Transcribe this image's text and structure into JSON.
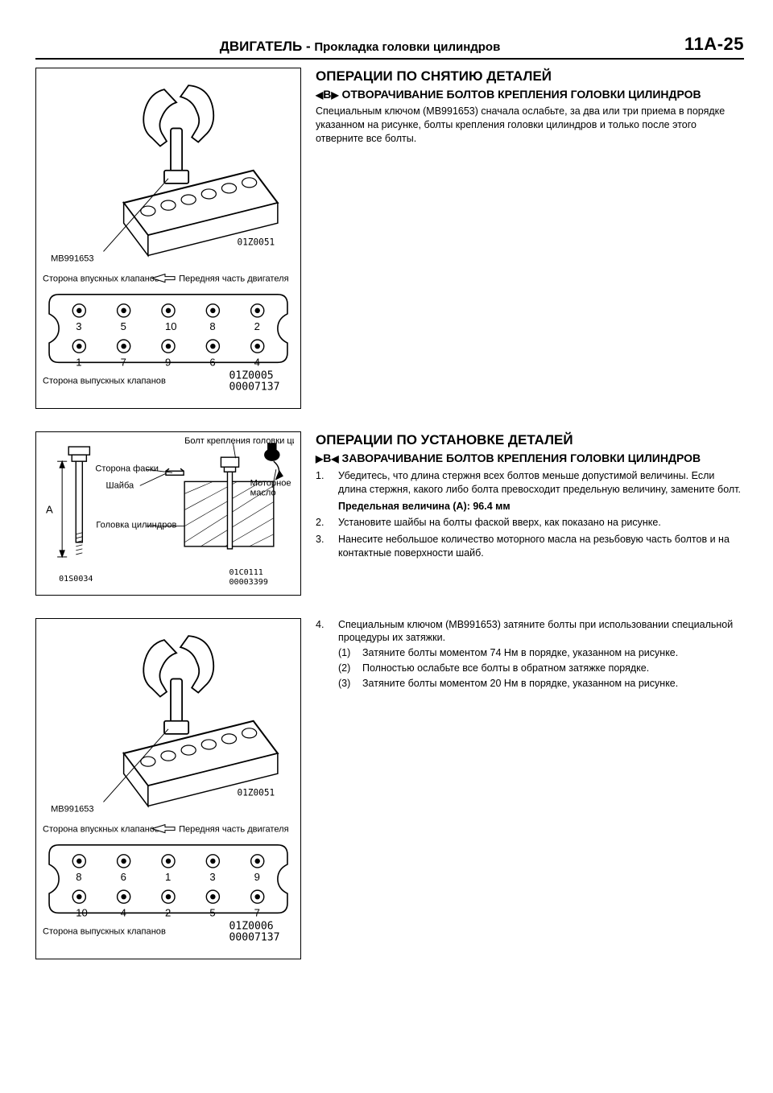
{
  "header": {
    "main": "ДВИГАТЕЛЬ",
    "separator": "-",
    "subtitle": "Прокладка головки цилиндров",
    "page_no": "11A-25"
  },
  "section1": {
    "title": "ОПЕРАЦИИ ПО СНЯТИЮ ДЕТАЛЕЙ",
    "subtitle_prefix_icon": "◀B▶",
    "subtitle": "ОТВОРАЧИВАНИЕ БОЛТОВ КРЕПЛЕНИЯ ГОЛОВКИ ЦИЛИНДРОВ",
    "body": "Специальным ключом (MB991653) сначала ослабьте, за два или три приема в порядке указанном на рисунке, болты крепления головки цилиндров и только после этого отверните все болты."
  },
  "section2": {
    "title": "ОПЕРАЦИИ ПО УСТАНОВКЕ ДЕТАЛЕЙ",
    "subtitle_prefix_icon": "▶B◀",
    "subtitle": "ЗАВОРАЧИВАНИЕ БОЛТОВ КРЕПЛЕНИЯ ГОЛОВКИ ЦИЛИНДРОВ",
    "steps_a": [
      "Убедитесь, что длина стержня всех болтов меньше допустимой величины. Если длина стержня, какого либо болта превосходит предельную величину, замените болт.",
      "Установите шайбы на болты фаской вверх, как показано на рисунке.",
      "Нанесите небольшое количество моторного масла на резьбовую часть болтов и на контактные поверхности шайб."
    ],
    "limit_label": "Предельная величина (A): 96.4 мм",
    "step4_lead": "Специальным ключом (MB991653) затяните болты при использовании специальной процедуры их затяжки.",
    "step4_sub": [
      "Затяните болты моментом 74 Нм в порядке, указанном на рисунке.",
      "Полностью ослабьте все болты в обратном затяжке порядке.",
      "Затяните болты моментом 20 Нм в порядке, указанном на рисунке."
    ]
  },
  "fig_iso": {
    "tool_label": "MB991653",
    "code_right": "01Z0051"
  },
  "fig_bolt_order_loosen": {
    "label_intake": "Сторона впускных клапанов",
    "label_front": "Передняя часть двигателя",
    "label_exhaust": "Сторона выпускных клапанов",
    "top_row": [
      3,
      5,
      10,
      8,
      2
    ],
    "bottom_row": [
      1,
      7,
      9,
      6,
      4
    ],
    "code1": "01Z0005",
    "code2": "00007137"
  },
  "fig_bolt_order_tighten": {
    "label_intake": "Сторона впускных клапанов",
    "label_front": "Передняя часть двигателя",
    "label_exhaust": "Сторона выпускных клапанов",
    "top_row": [
      8,
      6,
      1,
      3,
      9
    ],
    "bottom_row": [
      10,
      4,
      2,
      5,
      7
    ],
    "code1": "01Z0006",
    "code2": "00007137"
  },
  "fig_bolt": {
    "label_bolt": "Болт крепления головки цилиндров",
    "label_chamfer": "Сторона фаски",
    "label_washer": "Шайба",
    "label_head": "Головка цилиндров",
    "label_oil": "Моторное масло",
    "dim_letter": "A",
    "code1": "01S0034",
    "code2": "01C0111",
    "code3": "00003399"
  },
  "style": {
    "stroke": "#000000",
    "bg": "#ffffff"
  }
}
